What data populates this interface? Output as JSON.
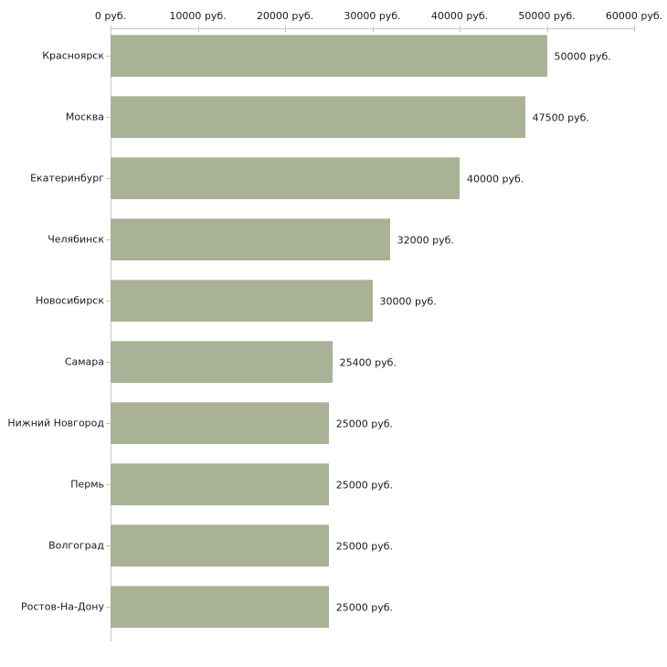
{
  "chart_data": {
    "type": "bar",
    "orientation": "horizontal",
    "title": "",
    "categories": [
      "Красноярск",
      "Москва",
      "Екатеринбург",
      "Челябинск",
      "Новосибирск",
      "Самара",
      "Нижний Новгород",
      "Пермь",
      "Волгоград",
      "Ростов-На-Дону"
    ],
    "values": [
      50000,
      47500,
      40000,
      32000,
      30000,
      25400,
      25000,
      25000,
      25000,
      25000
    ],
    "value_labels": [
      "50000 руб.",
      "47500 руб.",
      "40000 руб.",
      "32000 руб.",
      "30000 руб.",
      "25400 руб.",
      "25000 руб.",
      "25000 руб.",
      "25000 руб.",
      "25000 руб."
    ],
    "x_axis": {
      "position": "top",
      "range": [
        0,
        60000
      ],
      "tick_interval": 10000,
      "tick_labels": [
        "0 руб.",
        "10000 руб.",
        "20000 руб.",
        "30000 руб.",
        "40000 руб.",
        "50000 руб.",
        "60000 руб."
      ]
    },
    "grid": false,
    "legend": false,
    "colors": {
      "bar": "#a9b294",
      "bar_top_edge": "#c6cbb2",
      "axis_line": "#c6c6c2",
      "axis_tick": "#c9c9aa",
      "text": "#1a1a1a",
      "background": "#ffffff"
    }
  }
}
